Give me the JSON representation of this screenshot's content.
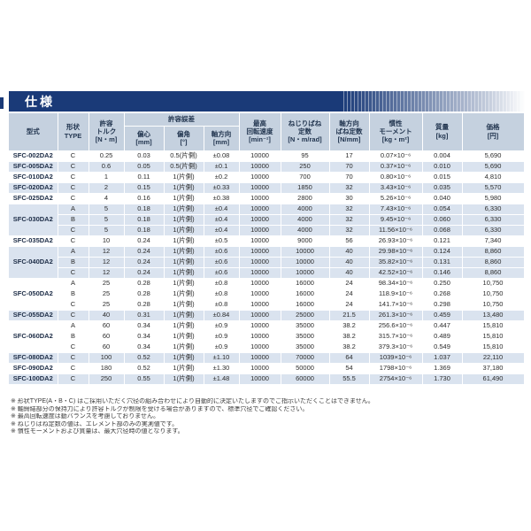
{
  "page": {
    "title": "仕様"
  },
  "colors": {
    "title_bar": "#1a3a78",
    "header_bg": "#c5d1df",
    "row_band": "#dae3ef",
    "text": "#2b2b2b"
  },
  "table": {
    "headers": {
      "model": "型式",
      "type": "形状\nTYPE",
      "torque": "許容\nトルク\n[N・m]",
      "tolerance_group": "許容誤差",
      "eccentricity": "偏心\n[mm]",
      "angular": "偏角\n[°]",
      "axial": "軸方向\n[mm]",
      "max_speed": "最高\n回転速度\n[min⁻¹]",
      "torsional_spring": "ねじりばね\n定数\n[N・m/rad]",
      "axial_spring": "軸方向\nばね定数\n[N/mm]",
      "inertia": "慣性\nモーメント\n[kg・m²]",
      "mass": "質量\n[kg]",
      "price": "価格\n[円]"
    },
    "groups": [
      {
        "model": "SFC-002DA2",
        "rows": [
          [
            "C",
            "0.25",
            "0.03",
            "0.5(片側)",
            "±0.08",
            "10000",
            "95",
            "17",
            "0.07×10⁻⁶",
            "0.004",
            "5,690"
          ]
        ]
      },
      {
        "model": "SFC-005DA2",
        "rows": [
          [
            "C",
            "0.6",
            "0.05",
            "0.5(片側)",
            "±0.1",
            "10000",
            "250",
            "70",
            "0.37×10⁻⁶",
            "0.010",
            "5,690"
          ]
        ]
      },
      {
        "model": "SFC-010DA2",
        "rows": [
          [
            "C",
            "1",
            "0.11",
            "1(片側)",
            "±0.2",
            "10000",
            "700",
            "70",
            "0.80×10⁻⁶",
            "0.015",
            "4,810"
          ]
        ]
      },
      {
        "model": "SFC-020DA2",
        "rows": [
          [
            "C",
            "2",
            "0.15",
            "1(片側)",
            "±0.33",
            "10000",
            "1850",
            "32",
            "3.43×10⁻⁶",
            "0.035",
            "5,570"
          ]
        ]
      },
      {
        "model": "SFC-025DA2",
        "rows": [
          [
            "C",
            "4",
            "0.16",
            "1(片側)",
            "±0.38",
            "10000",
            "2800",
            "30",
            "5.26×10⁻⁶",
            "0.040",
            "5,980"
          ]
        ]
      },
      {
        "model": "SFC-030DA2",
        "rows": [
          [
            "A",
            "5",
            "0.18",
            "1(片側)",
            "±0.4",
            "10000",
            "4000",
            "32",
            "7.43×10⁻⁶",
            "0.054",
            "6,330"
          ],
          [
            "B",
            "5",
            "0.18",
            "1(片側)",
            "±0.4",
            "10000",
            "4000",
            "32",
            "9.45×10⁻⁶",
            "0.060",
            "6,330"
          ],
          [
            "C",
            "5",
            "0.18",
            "1(片側)",
            "±0.4",
            "10000",
            "4000",
            "32",
            "11.56×10⁻⁶",
            "0.068",
            "6,330"
          ]
        ]
      },
      {
        "model": "SFC-035DA2",
        "rows": [
          [
            "C",
            "10",
            "0.24",
            "1(片側)",
            "±0.5",
            "10000",
            "9000",
            "56",
            "26.93×10⁻⁶",
            "0.121",
            "7,340"
          ]
        ]
      },
      {
        "model": "SFC-040DA2",
        "rows": [
          [
            "A",
            "12",
            "0.24",
            "1(片側)",
            "±0.6",
            "10000",
            "10000",
            "40",
            "29.98×10⁻⁶",
            "0.124",
            "8,860"
          ],
          [
            "B",
            "12",
            "0.24",
            "1(片側)",
            "±0.6",
            "10000",
            "10000",
            "40",
            "35.82×10⁻⁶",
            "0.131",
            "8,860"
          ],
          [
            "C",
            "12",
            "0.24",
            "1(片側)",
            "±0.6",
            "10000",
            "10000",
            "40",
            "42.52×10⁻⁶",
            "0.146",
            "8,860"
          ]
        ]
      },
      {
        "model": "SFC-050DA2",
        "rows": [
          [
            "A",
            "25",
            "0.28",
            "1(片側)",
            "±0.8",
            "10000",
            "16000",
            "24",
            "98.34×10⁻⁶",
            "0.250",
            "10,750"
          ],
          [
            "B",
            "25",
            "0.28",
            "1(片側)",
            "±0.8",
            "10000",
            "16000",
            "24",
            "118.9×10⁻⁶",
            "0.268",
            "10,750"
          ],
          [
            "C",
            "25",
            "0.28",
            "1(片側)",
            "±0.8",
            "10000",
            "16000",
            "24",
            "141.7×10⁻⁶",
            "0.298",
            "10,750"
          ]
        ]
      },
      {
        "model": "SFC-055DA2",
        "rows": [
          [
            "C",
            "40",
            "0.31",
            "1(片側)",
            "±0.84",
            "10000",
            "25000",
            "21.5",
            "261.3×10⁻⁶",
            "0.459",
            "13,480"
          ]
        ]
      },
      {
        "model": "SFC-060DA2",
        "rows": [
          [
            "A",
            "60",
            "0.34",
            "1(片側)",
            "±0.9",
            "10000",
            "35000",
            "38.2",
            "256.6×10⁻⁶",
            "0.447",
            "15,810"
          ],
          [
            "B",
            "60",
            "0.34",
            "1(片側)",
            "±0.9",
            "10000",
            "35000",
            "38.2",
            "315.7×10⁻⁶",
            "0.489",
            "15,810"
          ],
          [
            "C",
            "60",
            "0.34",
            "1(片側)",
            "±0.9",
            "10000",
            "35000",
            "38.2",
            "379.3×10⁻⁶",
            "0.549",
            "15,810"
          ]
        ]
      },
      {
        "model": "SFC-080DA2",
        "rows": [
          [
            "C",
            "100",
            "0.52",
            "1(片側)",
            "±1.10",
            "10000",
            "70000",
            "64",
            "1039×10⁻⁶",
            "1.037",
            "22,110"
          ]
        ]
      },
      {
        "model": "SFC-090DA2",
        "rows": [
          [
            "C",
            "180",
            "0.52",
            "1(片側)",
            "±1.30",
            "10000",
            "50000",
            "54",
            "1798×10⁻⁶",
            "1.369",
            "37,180"
          ]
        ]
      },
      {
        "model": "SFC-100DA2",
        "rows": [
          [
            "C",
            "250",
            "0.55",
            "1(片側)",
            "±1.48",
            "10000",
            "60000",
            "55.5",
            "2754×10⁻⁶",
            "1.730",
            "61,490"
          ]
        ]
      }
    ]
  },
  "notes": [
    "※ 形状TYPE(A・B・C) はご採用いただく穴径の組み合わせにより自動的に決定いたしますのでご指示いただくことはできません。",
    "※ 軸締結部分の保持力により許容トルクが制限を受ける場合がありますので、標準穴径でご確認ください。",
    "※ 最高回転速度は動バランスを考慮しておりません。",
    "※ ねじりばね定数の値は、エレメント部のみの実測値です。",
    "※ 慣性モーメントおよび質量は、最大穴径時の値となります。"
  ]
}
